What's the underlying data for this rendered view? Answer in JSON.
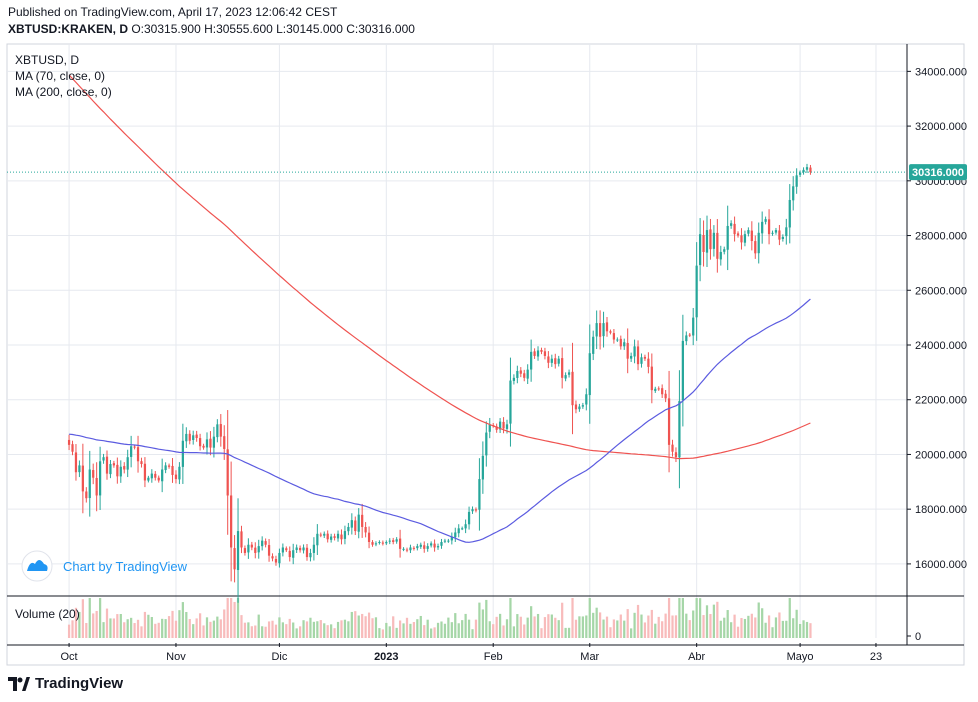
{
  "header": {
    "published": "Published on TradingView.com, April 17, 2023 12:06:42 CEST",
    "symbol_line": "XBTUSD:KRAKEN, D",
    "ohlc": "O:30315.900 H:30555.600 L:30145.000 C:30316.000"
  },
  "legend": {
    "symbol": "XBTUSD, D",
    "ma70": "MA (70, close, 0)",
    "ma200": "MA (200, close, 0)"
  },
  "watermark": "Chart by TradingView",
  "footer_brand": "TradingView",
  "colors": {
    "up": "#26a69a",
    "down": "#ef5350",
    "up_vol": "#a5d6a7",
    "down_vol": "#f8bbbb",
    "ma70": "#5b5be0",
    "ma200": "#ef5350",
    "grid": "#e6e9ef",
    "axis": "#131722",
    "last": "#26a69a"
  },
  "chart_data": {
    "type": "candlestick",
    "title": "XBTUSD, D",
    "y_axis": {
      "ticks": [
        16000,
        18000,
        20000,
        22000,
        24000,
        26000,
        28000,
        30000,
        32000,
        34000
      ],
      "tick_labels": [
        "16000.000",
        "18000.000",
        "20000.000",
        "22000.000",
        "24000.000",
        "26000.000",
        "28000.000",
        "30000.000",
        "32000.000",
        "34000.000"
      ],
      "range": [
        14900,
        35000
      ]
    },
    "x_axis": {
      "labels": [
        "Oct",
        "Nov",
        "Dic",
        "2023",
        "Feb",
        "Mar",
        "Abr",
        "Mayo",
        "23"
      ],
      "label_days": [
        0,
        31,
        61,
        92,
        123,
        151,
        182,
        212,
        234
      ],
      "start_day_offset": -18,
      "end_day": 243
    },
    "last_price": 30316,
    "last_price_label": "30316.000",
    "volume_label": "Volume (20)",
    "volume_axis_label": "0",
    "candles_close": [
      20350,
      20100,
      19350,
      19600,
      18650,
      18400,
      19450,
      19150,
      18500,
      19750,
      19900,
      19300,
      19650,
      19600,
      19200,
      19550,
      19450,
      19900,
      20300,
      20250,
      19750,
      19650,
      19050,
      19150,
      19300,
      19150,
      19050,
      19450,
      19600,
      19550,
      19250,
      19100,
      19550,
      20500,
      20750,
      20500,
      20700,
      20600,
      20300,
      20250,
      20550,
      20250,
      20650,
      21100,
      20650,
      20200,
      18500,
      16600,
      15800,
      17200,
      16600,
      16400,
      16700,
      16600,
      16400,
      16650,
      16850,
      16700,
      16300,
      16200,
      16050,
      16400,
      16600,
      16500,
      16250,
      16500,
      16600,
      16500,
      16600,
      16250,
      16400,
      16700,
      17100,
      17050,
      17100,
      16900,
      17000,
      16950,
      17100,
      16900,
      17200,
      17350,
      17600,
      17200,
      17800,
      17350,
      17150,
      16800,
      16700,
      16750,
      16800,
      16750,
      16800,
      16850,
      16800,
      16900,
      16550,
      16550,
      16500,
      16600,
      16550,
      16650,
      16700,
      16550,
      16650,
      16750,
      16600,
      16650,
      16800,
      16850,
      16850,
      17000,
      17150,
      17300,
      17300,
      17450,
      17900,
      18000,
      17950,
      19100,
      19950,
      20800,
      21100,
      21050,
      20900,
      21200,
      20950,
      21100,
      22700,
      22800,
      23050,
      22950,
      22800,
      23100,
      23750,
      23600,
      23800,
      23750,
      23600,
      23350,
      23500,
      23300,
      23500,
      22800,
      22900,
      23000,
      21800,
      21650,
      21750,
      21800,
      22200,
      23700,
      24300,
      24800,
      24300,
      24800,
      24500,
      24450,
      24200,
      24200,
      23950,
      24100,
      23500,
      23600,
      23950,
      23300,
      23550,
      23500,
      23200,
      22350,
      22400,
      22400,
      22200,
      22050,
      20350,
      20100,
      19900,
      21950,
      24150,
      24350,
      24350,
      25000,
      26900,
      28050,
      27400,
      28200,
      27500,
      28100,
      27150,
      27400,
      27500,
      28350,
      28450,
      28050,
      28000,
      27750,
      28050,
      28200,
      27800,
      27350,
      28100,
      28500,
      28600,
      28050,
      28100,
      28200,
      27850,
      27950,
      28300,
      29300,
      29800,
      30200,
      30300,
      30400,
      30500,
      30316
    ]
  }
}
